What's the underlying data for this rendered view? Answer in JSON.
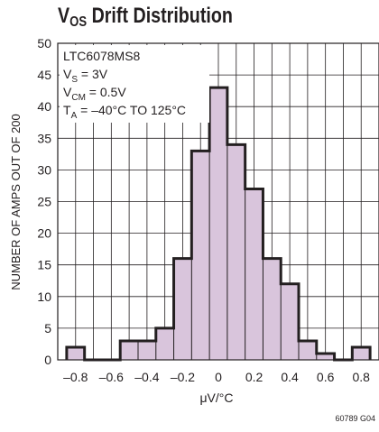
{
  "chart_data": {
    "type": "bar",
    "title_main": "V",
    "title_sub": "OS",
    "title_rest": " Drift Distribution",
    "xlabel": "μV/°C",
    "ylabel": "NUMBER OF AMPS OUT OF 200",
    "xlim": [
      -0.9,
      0.9
    ],
    "ylim": [
      0,
      50
    ],
    "xticks": [
      "–0.8",
      "–0.6",
      "–0.4",
      "–0.2",
      "0",
      "0.2",
      "0.4",
      "0.6",
      "0.8"
    ],
    "yticks": [
      "0",
      "5",
      "10",
      "15",
      "20",
      "25",
      "30",
      "35",
      "40",
      "45",
      "50"
    ],
    "bin_width": 0.1,
    "bins": [
      {
        "x": -0.8,
        "value": 2
      },
      {
        "x": -0.7,
        "value": 0
      },
      {
        "x": -0.6,
        "value": 0
      },
      {
        "x": -0.5,
        "value": 3
      },
      {
        "x": -0.4,
        "value": 3
      },
      {
        "x": -0.3,
        "value": 5
      },
      {
        "x": -0.2,
        "value": 16
      },
      {
        "x": -0.1,
        "value": 33
      },
      {
        "x": 0.0,
        "value": 43
      },
      {
        "x": 0.1,
        "value": 34
      },
      {
        "x": 0.2,
        "value": 27
      },
      {
        "x": 0.3,
        "value": 16
      },
      {
        "x": 0.4,
        "value": 12
      },
      {
        "x": 0.5,
        "value": 3
      },
      {
        "x": 0.6,
        "value": 1
      },
      {
        "x": 0.7,
        "value": 0
      },
      {
        "x": 0.8,
        "value": 2
      }
    ],
    "annotations": [
      {
        "text": "LTC6078MS8"
      },
      {
        "main": "V",
        "sub": "S",
        "rest": " = 3V"
      },
      {
        "main": "V",
        "sub": "CM",
        "rest": " = 0.5V"
      },
      {
        "main": "T",
        "sub": "A",
        "rest": " = –40°C TO 125°C"
      }
    ],
    "fill_color": "#d9c5dc",
    "edge_color": "#231f20",
    "grid": true
  },
  "doc_code": "60789 G04"
}
